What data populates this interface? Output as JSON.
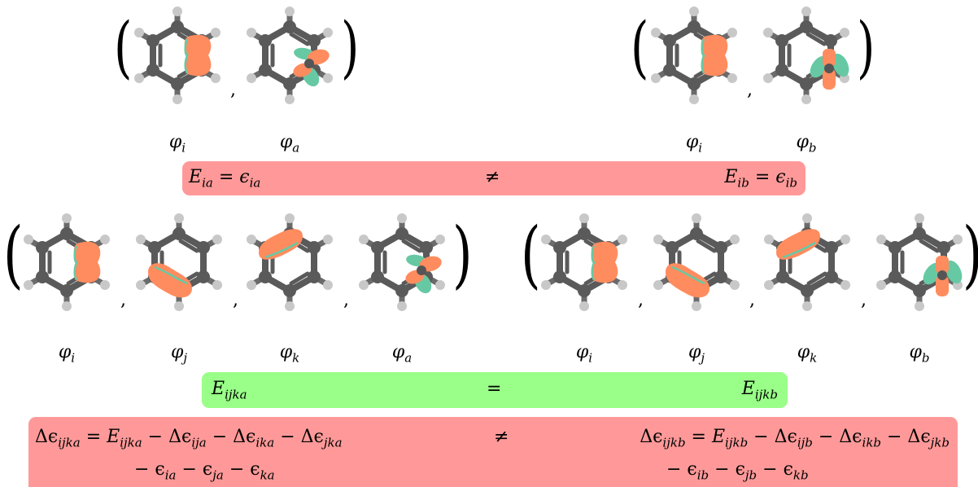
{
  "top_left": {
    "labels": [
      {
        "base": "φ",
        "sub": "i"
      },
      {
        "base": "φ",
        "sub": "a"
      }
    ]
  },
  "top_right": {
    "labels": [
      {
        "base": "φ",
        "sub": "i"
      },
      {
        "base": "φ",
        "sub": "b"
      }
    ]
  },
  "bottom_left": {
    "labels": [
      {
        "base": "φ",
        "sub": "i"
      },
      {
        "base": "φ",
        "sub": "j"
      },
      {
        "base": "φ",
        "sub": "k"
      },
      {
        "base": "φ",
        "sub": "a"
      }
    ]
  },
  "bottom_right": {
    "labels": [
      {
        "base": "φ",
        "sub": "i"
      },
      {
        "base": "φ",
        "sub": "j"
      },
      {
        "base": "φ",
        "sub": "k"
      },
      {
        "base": "φ",
        "sub": "b"
      }
    ]
  },
  "separator": ",",
  "row1": {
    "left_E": "E",
    "left_E_sub": "ia",
    "left_eps": "ϵ",
    "left_eps_sub": "ia",
    "relation": "≠",
    "right_E": "E",
    "right_E_sub": "ib",
    "right_eps": "ϵ",
    "right_eps_sub": "ib",
    "equals": "="
  },
  "row2": {
    "left_E": "E",
    "left_E_sub": "ijka",
    "relation": "=",
    "right_E": "E",
    "right_E_sub": "ijkb"
  },
  "row3": {
    "left_line1": [
      "Δϵ",
      "ijka",
      " = ",
      "E",
      "ijka",
      " − Δϵ",
      "ija",
      " − Δϵ",
      "ika",
      " − Δϵ",
      "jka"
    ],
    "left_line2": [
      "− ϵ",
      "ia",
      " − ϵ",
      "ja",
      " − ϵ",
      "ka"
    ],
    "relation": "≠",
    "right_line1": [
      "Δϵ",
      "ijkb",
      " = ",
      "E",
      "ijkb",
      " − Δϵ",
      "ijb",
      " − Δϵ",
      "ikb",
      " − Δϵ",
      "jkb"
    ],
    "right_line2": [
      "− ϵ",
      "ib",
      " − ϵ",
      "jb",
      " − ϵ",
      "kb"
    ]
  },
  "colors": {
    "atom_carbon": "#5a5a5a",
    "atom_hydrogen": "#c8c8c8",
    "orbital_orange": "#ff8c5f",
    "orbital_teal": "#66c9a4",
    "box_red": "#ff9999",
    "box_green": "#99ff88"
  }
}
